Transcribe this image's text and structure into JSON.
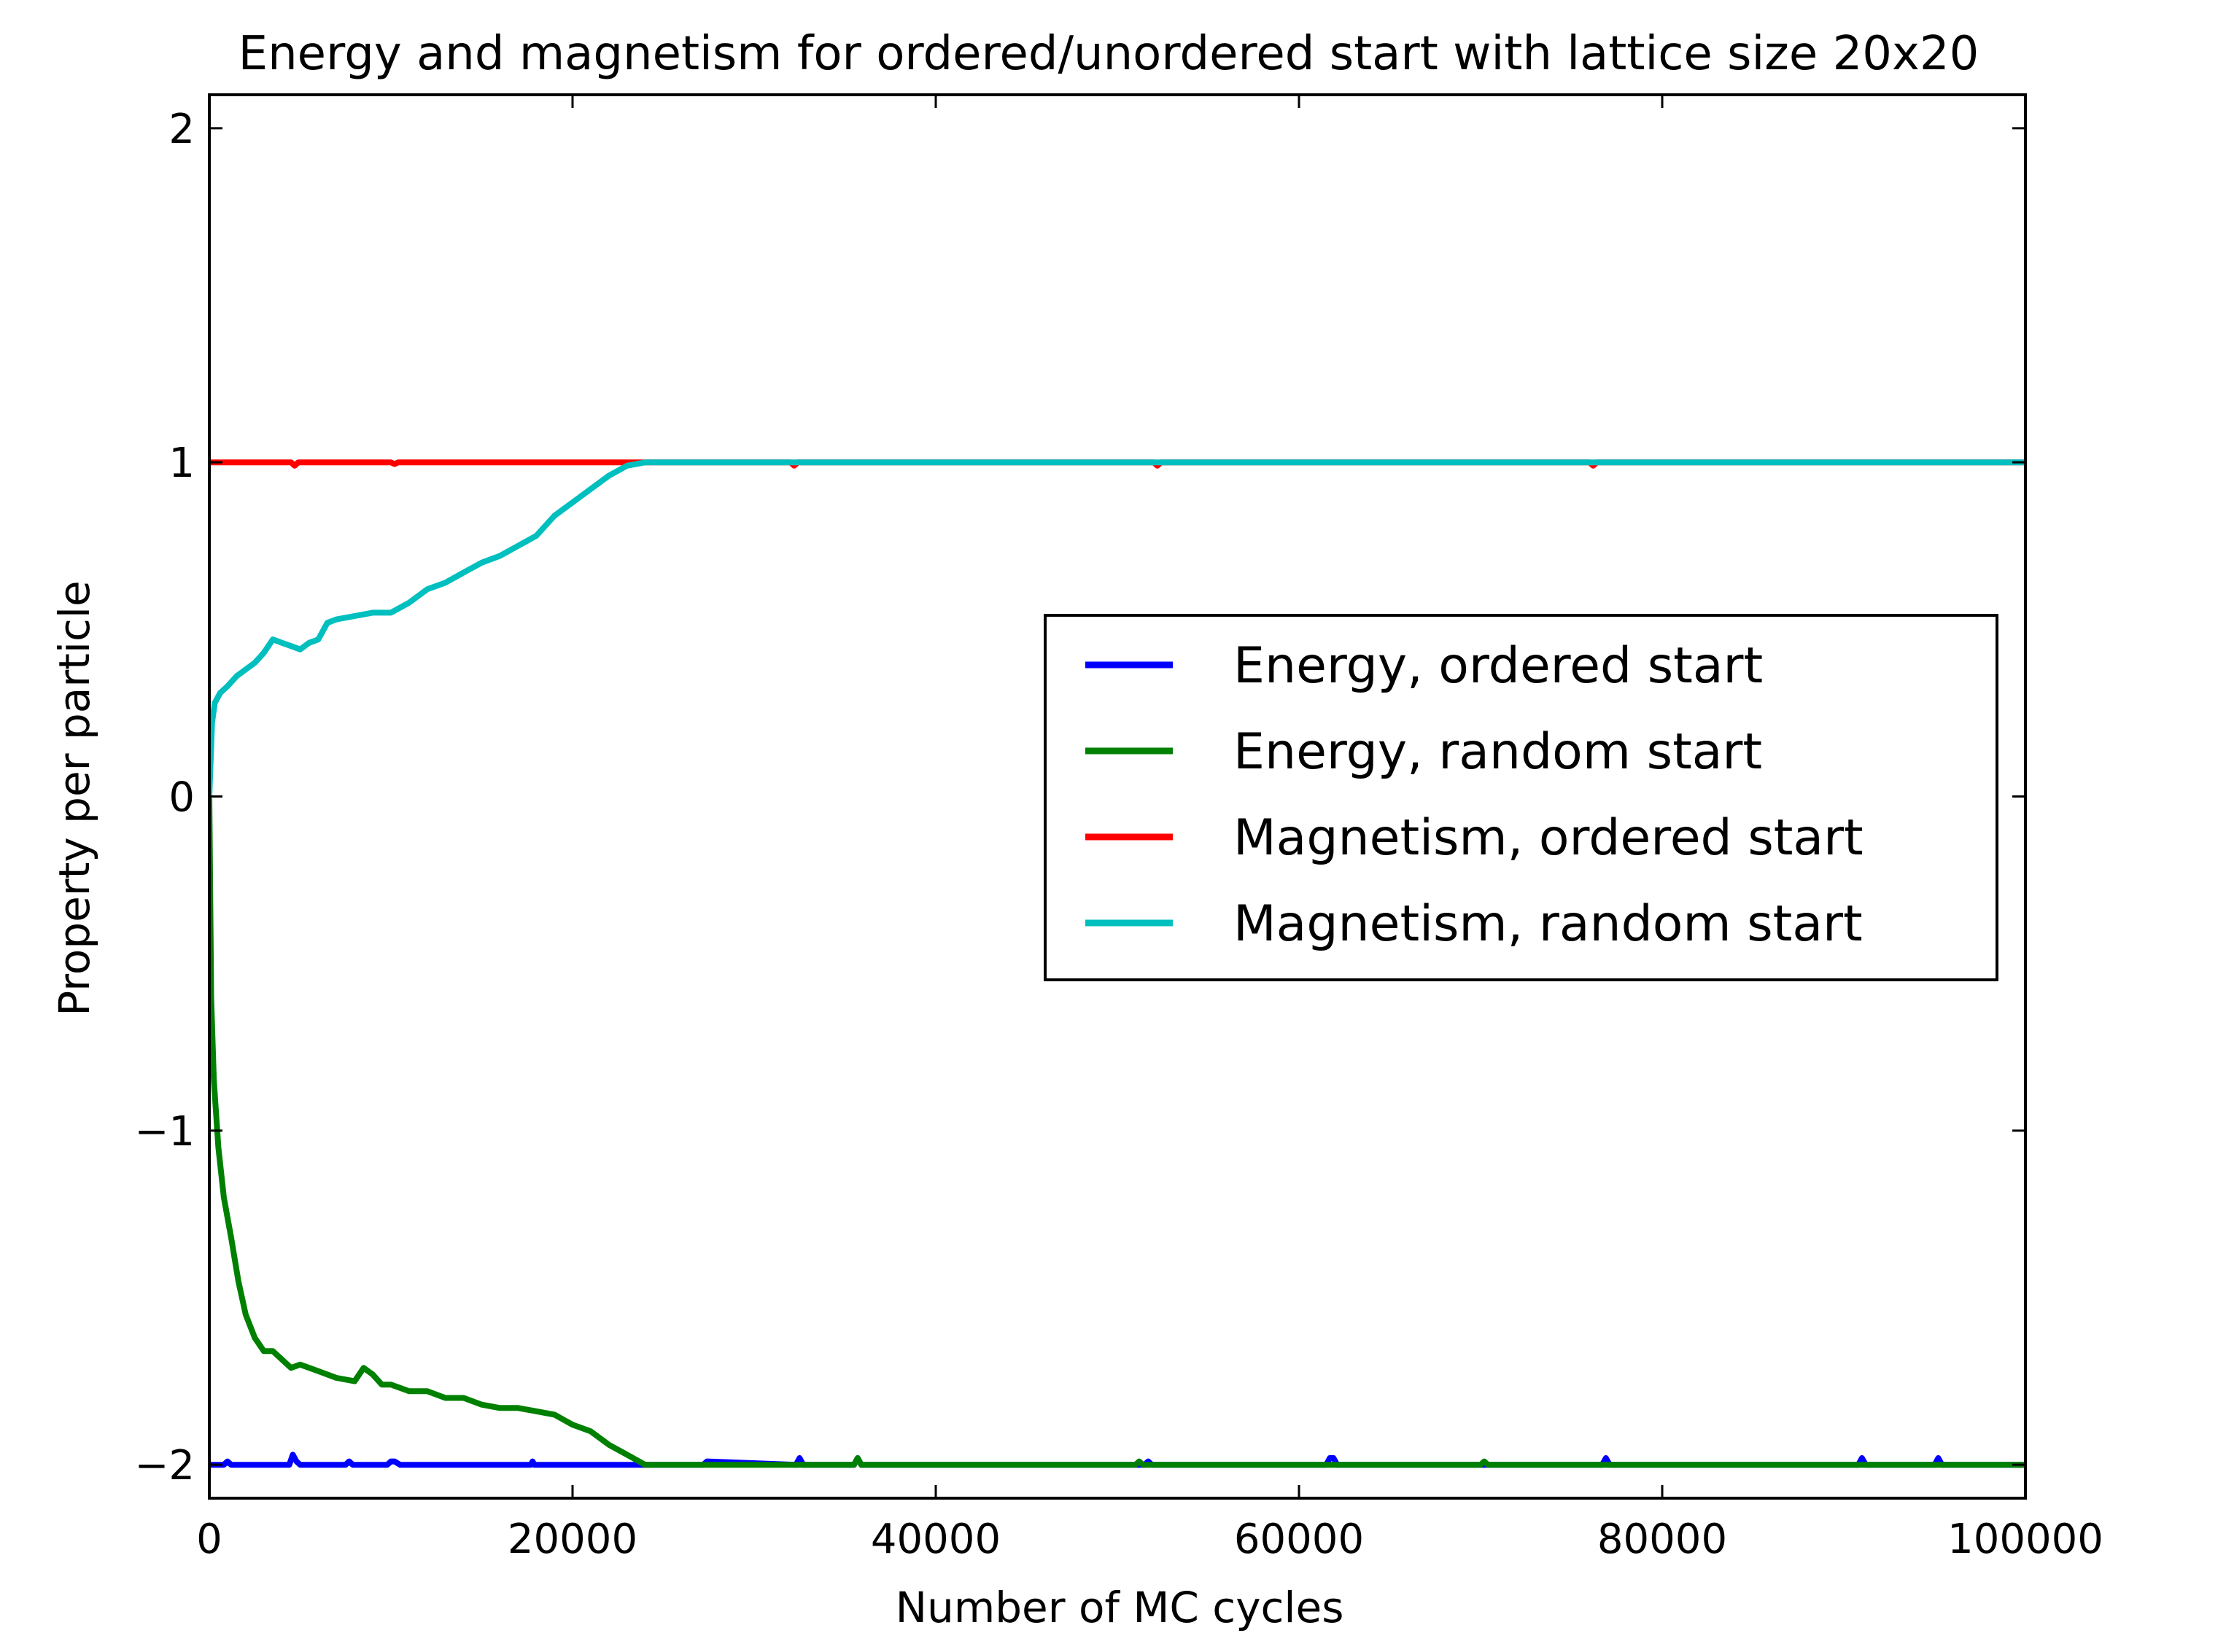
{
  "chart_data": {
    "type": "line",
    "title": "Energy and magnetism for ordered/unordered start with lattice size 20x20",
    "xlabel": "Number of MC cycles",
    "ylabel": "Property per particle",
    "xlim": [
      0,
      100000
    ],
    "ylim": [
      -2.1,
      2.1
    ],
    "xticks": [
      0,
      20000,
      40000,
      60000,
      80000,
      100000
    ],
    "xtick_labels": [
      "0",
      "20000",
      "40000",
      "60000",
      "80000",
      "100000"
    ],
    "yticks": [
      -2,
      -1,
      0,
      1,
      2
    ],
    "ytick_labels": [
      "−2",
      "−1",
      "0",
      "1",
      "2"
    ],
    "grid": false,
    "legend_position": "center-right",
    "series": [
      {
        "name": "Energy, ordered start",
        "color": "#0000ff",
        "x": [
          0,
          800,
          1000,
          1200,
          4400,
          4600,
          4800,
          5000,
          7500,
          7700,
          7900,
          9800,
          10000,
          10200,
          10500,
          17700,
          17800,
          17900,
          22000,
          24000,
          27200,
          27400,
          32300,
          32500,
          32700,
          35500,
          35700,
          35900,
          51500,
          51700,
          51900,
          61500,
          61700,
          61900,
          62100,
          76700,
          76900,
          77100,
          90800,
          91000,
          91200,
          95000,
          95200,
          95400,
          100000
        ],
        "y": [
          -2,
          -2,
          -1.99,
          -2,
          -2,
          -1.97,
          -1.99,
          -2,
          -2,
          -1.99,
          -2,
          -2,
          -1.99,
          -1.99,
          -2,
          -2,
          -1.99,
          -2,
          -2,
          -2,
          -2,
          -1.99,
          -2,
          -1.98,
          -2,
          -2,
          -1.98,
          -2,
          -2,
          -1.99,
          -2,
          -2,
          -1.98,
          -1.98,
          -2,
          -2,
          -1.98,
          -2,
          -2,
          -1.98,
          -2,
          -2,
          -1.98,
          -2,
          -2
        ]
      },
      {
        "name": "Energy, random start",
        "color": "#008000",
        "x": [
          0,
          100,
          250,
          500,
          800,
          1200,
          1600,
          2000,
          2500,
          3000,
          3500,
          4500,
          5000,
          6000,
          7000,
          8000,
          8500,
          9000,
          9500,
          10000,
          11000,
          12000,
          13000,
          14000,
          15000,
          16000,
          17000,
          18000,
          19000,
          20000,
          21000,
          22000,
          23000,
          24000,
          30000,
          35500,
          35700,
          35900,
          51000,
          51200,
          51400,
          70000,
          70200,
          70400,
          100000
        ],
        "y": [
          0,
          -0.6,
          -0.85,
          -1.05,
          -1.2,
          -1.32,
          -1.45,
          -1.55,
          -1.62,
          -1.66,
          -1.66,
          -1.71,
          -1.7,
          -1.72,
          -1.74,
          -1.75,
          -1.71,
          -1.73,
          -1.76,
          -1.76,
          -1.78,
          -1.78,
          -1.8,
          -1.8,
          -1.82,
          -1.83,
          -1.83,
          -1.84,
          -1.85,
          -1.88,
          -1.9,
          -1.94,
          -1.97,
          -2,
          -2,
          -2,
          -1.98,
          -2,
          -2,
          -1.99,
          -2,
          -2,
          -1.99,
          -2,
          -2
        ]
      },
      {
        "name": "Magnetism, ordered start",
        "color": "#ff0000",
        "x": [
          0,
          4500,
          4700,
          4900,
          10000,
          10200,
          10400,
          32000,
          32200,
          32400,
          52000,
          52200,
          52400,
          76000,
          76200,
          76400,
          100000
        ],
        "y": [
          1,
          1,
          0.99,
          1,
          1,
          0.995,
          1,
          1,
          0.99,
          1,
          1,
          0.99,
          1,
          1,
          0.99,
          1,
          1
        ]
      },
      {
        "name": "Magnetism, random start",
        "color": "#00bfbf",
        "x": [
          0,
          150,
          300,
          600,
          1000,
          1500,
          2000,
          2500,
          3000,
          3500,
          4000,
          4500,
          5000,
          5500,
          6000,
          6500,
          7000,
          8000,
          9000,
          10000,
          11000,
          12000,
          13000,
          14000,
          15000,
          16000,
          17000,
          18000,
          19000,
          20000,
          21000,
          22000,
          23000,
          24000,
          40000,
          60000,
          80000,
          100000
        ],
        "y": [
          0,
          0.22,
          0.28,
          0.31,
          0.33,
          0.36,
          0.38,
          0.4,
          0.43,
          0.47,
          0.46,
          0.45,
          0.44,
          0.46,
          0.47,
          0.52,
          0.53,
          0.54,
          0.55,
          0.55,
          0.58,
          0.62,
          0.64,
          0.67,
          0.7,
          0.72,
          0.75,
          0.78,
          0.84,
          0.88,
          0.92,
          0.96,
          0.99,
          1,
          1,
          1,
          1,
          1
        ]
      }
    ]
  }
}
